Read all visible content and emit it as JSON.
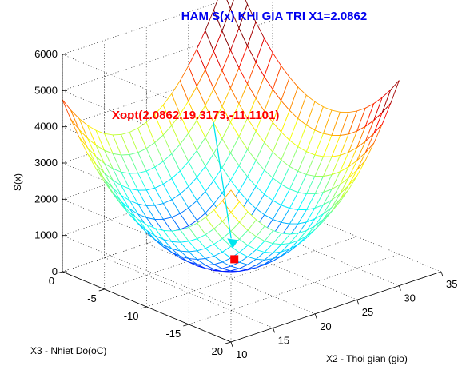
{
  "chart_data": {
    "type": "surface3d",
    "title": "HAM S(x) KHI GIA TRI X1=2.0862",
    "zlabel": "S(x)",
    "xlabel": "X2 - Thoi gian (gio)",
    "ylabel": "X3 - Nhiet Do(oC)",
    "xlim": [
      10,
      35
    ],
    "ylim": [
      -20,
      0
    ],
    "zlim": [
      0,
      6000
    ],
    "xticks": [
      "10",
      "15",
      "20",
      "25",
      "30",
      "35"
    ],
    "yticks": [
      "0",
      "-5",
      "-10",
      "-15",
      "-20"
    ],
    "zticks": [
      "0",
      "1000",
      "2000",
      "3000",
      "4000",
      "5000",
      "6000"
    ],
    "grid": true,
    "colormap": "jet",
    "surface": {
      "x_range": [
        10,
        30
      ],
      "y_range": [
        -20,
        0
      ],
      "corners": {
        "x10_y0": 3500,
        "x30_y0": 5200,
        "x10_y-20": 800,
        "x30_y-20": 1500
      },
      "minimum_region": {
        "x": 20,
        "y": -12,
        "z": 100
      }
    },
    "optimum": {
      "label": "Xopt(2.0862,19.3173,-11.1101)",
      "x": 19.3173,
      "y": -11.1101,
      "z": 700,
      "color": "#ff0000"
    },
    "annotation_arrow_color": "#00e5ee"
  }
}
